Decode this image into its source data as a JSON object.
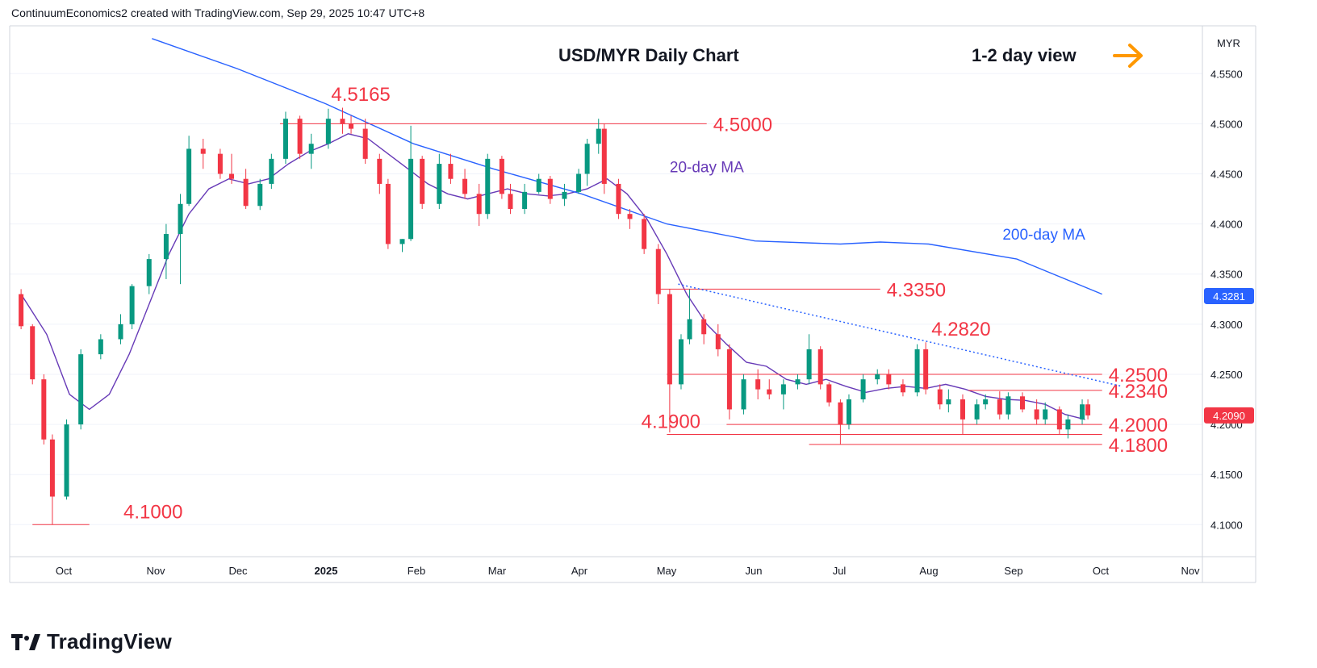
{
  "header": {
    "attribution": "ContinuumEconomics2 created with TradingView.com, Sep 29, 2025 10:47 UTC+8"
  },
  "footer": {
    "brand": "TradingView"
  },
  "colors": {
    "up": "#089981",
    "down": "#f23645",
    "ma20": "#673ab7",
    "ma200": "#2962ff",
    "level": "#f23645",
    "arrow": "#ff9800",
    "label_bg": "#131722"
  },
  "chart_data": {
    "type": "candlestick",
    "title": "USD/MYR Daily Chart",
    "view": {
      "text": "1-2 day view",
      "arrow": "right-arrow-icon"
    },
    "currency": "MYR",
    "y_axis": {
      "ticks": [
        "4.5500",
        "4.5000",
        "4.4500",
        "4.4000",
        "4.3500",
        "4.3000",
        "4.2500",
        "4.2000",
        "4.1500",
        "4.1000"
      ],
      "range": [
        4.06,
        4.58
      ]
    },
    "x_axis": {
      "ticks": [
        "Oct",
        "Nov",
        "Dec",
        "2025",
        "Feb",
        "Mar",
        "Apr",
        "May",
        "Jun",
        "Jul",
        "Aug",
        "Sep",
        "Oct",
        "Nov"
      ]
    },
    "price_labels": {
      "ma200": "4.3281",
      "last": "4.2090"
    },
    "series": [
      {
        "name": "20-day MA",
        "points": [
          [
            "2024-09-16",
            4.33
          ],
          [
            "2024-09-25",
            4.29
          ],
          [
            "2024-10-03",
            4.23
          ],
          [
            "2024-10-10",
            4.215
          ],
          [
            "2024-10-17",
            4.23
          ],
          [
            "2024-10-24",
            4.27
          ],
          [
            "2024-10-31",
            4.32
          ],
          [
            "2024-11-07",
            4.37
          ],
          [
            "2024-11-14",
            4.41
          ],
          [
            "2024-11-21",
            4.435
          ],
          [
            "2024-11-28",
            4.445
          ],
          [
            "2024-12-05",
            4.44
          ],
          [
            "2024-12-12",
            4.445
          ],
          [
            "2024-12-19",
            4.46
          ],
          [
            "2024-12-26",
            4.472
          ],
          [
            "2025-01-02",
            4.48
          ],
          [
            "2025-01-09",
            4.49
          ],
          [
            "2025-01-16",
            4.485
          ],
          [
            "2025-01-23",
            4.47
          ],
          [
            "2025-01-30",
            4.455
          ],
          [
            "2025-02-06",
            4.44
          ],
          [
            "2025-02-13",
            4.43
          ],
          [
            "2025-02-20",
            4.425
          ],
          [
            "2025-02-27",
            4.43
          ],
          [
            "2025-03-06",
            4.435
          ],
          [
            "2025-03-13",
            4.43
          ],
          [
            "2025-03-20",
            4.428
          ],
          [
            "2025-03-27",
            4.43
          ],
          [
            "2025-04-03",
            4.435
          ],
          [
            "2025-04-10",
            4.445
          ],
          [
            "2025-04-17",
            4.43
          ],
          [
            "2025-04-24",
            4.405
          ],
          [
            "2025-05-01",
            4.37
          ],
          [
            "2025-05-08",
            4.33
          ],
          [
            "2025-05-15",
            4.3
          ],
          [
            "2025-05-22",
            4.28
          ],
          [
            "2025-05-29",
            4.262
          ],
          [
            "2025-06-05",
            4.258
          ],
          [
            "2025-06-12",
            4.245
          ],
          [
            "2025-06-19",
            4.24
          ],
          [
            "2025-06-26",
            4.245
          ],
          [
            "2025-07-03",
            4.238
          ],
          [
            "2025-07-10",
            4.232
          ],
          [
            "2025-07-17",
            4.236
          ],
          [
            "2025-07-24",
            4.238
          ],
          [
            "2025-07-31",
            4.236
          ],
          [
            "2025-08-07",
            4.24
          ],
          [
            "2025-08-14",
            4.235
          ],
          [
            "2025-08-21",
            4.228
          ],
          [
            "2025-08-28",
            4.225
          ],
          [
            "2025-09-04",
            4.224
          ],
          [
            "2025-09-11",
            4.22
          ],
          [
            "2025-09-18",
            4.21
          ],
          [
            "2025-09-25",
            4.205
          ]
        ]
      },
      {
        "name": "200-day MA",
        "points": [
          [
            "2024-11-01",
            4.585
          ],
          [
            "2024-12-01",
            4.555
          ],
          [
            "2025-01-01",
            4.52
          ],
          [
            "2025-02-01",
            4.48
          ],
          [
            "2025-03-01",
            4.455
          ],
          [
            "2025-04-01",
            4.43
          ],
          [
            "2025-05-01",
            4.4
          ],
          [
            "2025-06-01",
            4.383
          ],
          [
            "2025-07-01",
            4.38
          ],
          [
            "2025-07-15",
            4.382
          ],
          [
            "2025-08-01",
            4.38
          ],
          [
            "2025-09-01",
            4.365
          ],
          [
            "2025-10-01",
            4.33
          ]
        ]
      }
    ],
    "candles": {
      "columns": [
        "date",
        "open",
        "high",
        "low",
        "close"
      ],
      "rows": [
        [
          "2024-09-16",
          4.33,
          4.335,
          4.295,
          4.298
        ],
        [
          "2024-09-20",
          4.298,
          4.3,
          4.24,
          4.245
        ],
        [
          "2024-09-24",
          4.245,
          4.25,
          4.18,
          4.185
        ],
        [
          "2024-09-27",
          4.185,
          4.19,
          4.1,
          4.128
        ],
        [
          "2024-10-02",
          4.128,
          4.205,
          4.125,
          4.2
        ],
        [
          "2024-10-07",
          4.2,
          4.275,
          4.195,
          4.27
        ],
        [
          "2024-10-14",
          4.27,
          4.29,
          4.265,
          4.285
        ],
        [
          "2024-10-21",
          4.285,
          4.31,
          4.28,
          4.3
        ],
        [
          "2024-10-25",
          4.3,
          4.34,
          4.295,
          4.338
        ],
        [
          "2024-10-31",
          4.338,
          4.37,
          4.33,
          4.365
        ],
        [
          "2024-11-06",
          4.365,
          4.4,
          4.345,
          4.39
        ],
        [
          "2024-11-11",
          4.39,
          4.43,
          4.34,
          4.42
        ],
        [
          "2024-11-14",
          4.42,
          4.488,
          4.418,
          4.475
        ],
        [
          "2024-11-19",
          4.475,
          4.485,
          4.455,
          4.47
        ],
        [
          "2024-11-25",
          4.47,
          4.475,
          4.445,
          4.45
        ],
        [
          "2024-11-29",
          4.45,
          4.47,
          4.44,
          4.445
        ],
        [
          "2024-12-04",
          4.445,
          4.455,
          4.415,
          4.418
        ],
        [
          "2024-12-09",
          4.418,
          4.445,
          4.414,
          4.44
        ],
        [
          "2024-12-13",
          4.44,
          4.47,
          4.435,
          4.465
        ],
        [
          "2024-12-18",
          4.465,
          4.512,
          4.46,
          4.505
        ],
        [
          "2024-12-23",
          4.505,
          4.508,
          4.465,
          4.47
        ],
        [
          "2024-12-27",
          4.47,
          4.49,
          4.455,
          4.48
        ],
        [
          "2025-01-02",
          4.48,
          4.515,
          4.475,
          4.505
        ],
        [
          "2025-01-07",
          4.505,
          4.516,
          4.49,
          4.5
        ],
        [
          "2025-01-10",
          4.5,
          4.508,
          4.49,
          4.495
        ],
        [
          "2025-01-15",
          4.495,
          4.505,
          4.46,
          4.465
        ],
        [
          "2025-01-20",
          4.465,
          4.47,
          4.43,
          4.44
        ],
        [
          "2025-01-23",
          4.44,
          4.445,
          4.375,
          4.38
        ],
        [
          "2025-01-28",
          4.38,
          4.385,
          4.372,
          4.385
        ],
        [
          "2025-01-31",
          4.385,
          4.498,
          4.383,
          4.465
        ],
        [
          "2025-02-04",
          4.465,
          4.468,
          4.415,
          4.42
        ],
        [
          "2025-02-10",
          4.42,
          4.47,
          4.415,
          4.46
        ],
        [
          "2025-02-14",
          4.46,
          4.47,
          4.44,
          4.445
        ],
        [
          "2025-02-19",
          4.445,
          4.455,
          4.425,
          4.43
        ],
        [
          "2025-02-24",
          4.43,
          4.44,
          4.398,
          4.41
        ],
        [
          "2025-02-27",
          4.41,
          4.47,
          4.405,
          4.465
        ],
        [
          "2025-03-04",
          4.465,
          4.468,
          4.425,
          4.43
        ],
        [
          "2025-03-07",
          4.43,
          4.44,
          4.41,
          4.415
        ],
        [
          "2025-03-12",
          4.415,
          4.44,
          4.41,
          4.432
        ],
        [
          "2025-03-17",
          4.432,
          4.45,
          4.43,
          4.445
        ],
        [
          "2025-03-21",
          4.445,
          4.448,
          4.42,
          4.425
        ],
        [
          "2025-03-26",
          4.425,
          4.44,
          4.418,
          4.432
        ],
        [
          "2025-03-31",
          4.432,
          4.455,
          4.43,
          4.45
        ],
        [
          "2025-04-03",
          4.45,
          4.485,
          4.438,
          4.48
        ],
        [
          "2025-04-07",
          4.48,
          4.505,
          4.47,
          4.495
        ],
        [
          "2025-04-09",
          4.495,
          4.5,
          4.43,
          4.44
        ],
        [
          "2025-04-14",
          4.44,
          4.445,
          4.405,
          4.41
        ],
        [
          "2025-04-18",
          4.41,
          4.415,
          4.395,
          4.405
        ],
        [
          "2025-04-23",
          4.405,
          4.41,
          4.37,
          4.375
        ],
        [
          "2025-04-28",
          4.375,
          4.38,
          4.32,
          4.33
        ],
        [
          "2025-05-02",
          4.33,
          4.335,
          4.192,
          4.24
        ],
        [
          "2025-05-06",
          4.24,
          4.29,
          4.235,
          4.285
        ],
        [
          "2025-05-09",
          4.285,
          4.335,
          4.28,
          4.305
        ],
        [
          "2025-05-14",
          4.305,
          4.31,
          4.28,
          4.29
        ],
        [
          "2025-05-19",
          4.29,
          4.3,
          4.268,
          4.275
        ],
        [
          "2025-05-23",
          4.275,
          4.28,
          4.205,
          4.215
        ],
        [
          "2025-05-28",
          4.215,
          4.25,
          4.21,
          4.245
        ],
        [
          "2025-06-02",
          4.245,
          4.255,
          4.225,
          4.235
        ],
        [
          "2025-06-06",
          4.235,
          4.245,
          4.225,
          4.23
        ],
        [
          "2025-06-11",
          4.23,
          4.245,
          4.215,
          4.24
        ],
        [
          "2025-06-16",
          4.24,
          4.25,
          4.235,
          4.245
        ],
        [
          "2025-06-20",
          4.245,
          4.29,
          4.24,
          4.275
        ],
        [
          "2025-06-24",
          4.275,
          4.278,
          4.235,
          4.24
        ],
        [
          "2025-06-27",
          4.24,
          4.242,
          4.218,
          4.222
        ],
        [
          "2025-07-01",
          4.222,
          4.225,
          4.18,
          4.2
        ],
        [
          "2025-07-04",
          4.2,
          4.23,
          4.195,
          4.225
        ],
        [
          "2025-07-09",
          4.225,
          4.25,
          4.222,
          4.245
        ],
        [
          "2025-07-14",
          4.245,
          4.255,
          4.24,
          4.25
        ],
        [
          "2025-07-18",
          4.25,
          4.255,
          4.235,
          4.24
        ],
        [
          "2025-07-23",
          4.24,
          4.245,
          4.228,
          4.232
        ],
        [
          "2025-07-28",
          4.232,
          4.28,
          4.228,
          4.275
        ],
        [
          "2025-07-31",
          4.275,
          4.282,
          4.23,
          4.235
        ],
        [
          "2025-08-05",
          4.235,
          4.24,
          4.215,
          4.22
        ],
        [
          "2025-08-08",
          4.22,
          4.235,
          4.212,
          4.225
        ],
        [
          "2025-08-13",
          4.225,
          4.23,
          4.19,
          4.205
        ],
        [
          "2025-08-18",
          4.205,
          4.225,
          4.2,
          4.22
        ],
        [
          "2025-08-21",
          4.22,
          4.23,
          4.215,
          4.225
        ],
        [
          "2025-08-26",
          4.225,
          4.233,
          4.205,
          4.21
        ],
        [
          "2025-08-29",
          4.21,
          4.232,
          4.205,
          4.228
        ],
        [
          "2025-09-03",
          4.228,
          4.232,
          4.212,
          4.215
        ],
        [
          "2025-09-08",
          4.215,
          4.225,
          4.2,
          4.205
        ],
        [
          "2025-09-11",
          4.205,
          4.222,
          4.2,
          4.215
        ],
        [
          "2025-09-16",
          4.215,
          4.218,
          4.19,
          4.195
        ],
        [
          "2025-09-19",
          4.195,
          4.21,
          4.186,
          4.205
        ],
        [
          "2025-09-24",
          4.205,
          4.225,
          4.2,
          4.22
        ],
        [
          "2025-09-26",
          4.22,
          4.225,
          4.205,
          4.209
        ]
      ]
    },
    "levels": [
      {
        "value": 4.5,
        "label": "4.5000",
        "from": "2024-12-16",
        "to": "2025-05-15"
      },
      {
        "value": 4.335,
        "label": "4.3350",
        "from": "2025-04-28",
        "to": "2025-07-15"
      },
      {
        "value": 4.25,
        "label": "4.2500",
        "from": "2025-05-01",
        "to": "2025-10-01"
      },
      {
        "value": 4.234,
        "label": "4.2340",
        "from": "2025-08-15",
        "to": "2025-10-01"
      },
      {
        "value": 4.2,
        "label": "4.2000",
        "from": "2025-05-22",
        "to": "2025-10-01"
      },
      {
        "value": 4.19,
        "label": "",
        "from": "2025-05-01",
        "to": "2025-10-01"
      },
      {
        "value": 4.18,
        "label": "4.1800",
        "from": "2025-06-20",
        "to": "2025-10-01"
      },
      {
        "value": 4.1,
        "label": "",
        "from": "2024-09-20",
        "to": "2024-10-10"
      }
    ],
    "annotations": [
      {
        "text": "4.5165",
        "date": "2025-01-03",
        "value": 4.5165
      },
      {
        "text": "4.2820",
        "date": "2025-08-02",
        "value": 4.282
      },
      {
        "text": "4.1900",
        "date": "2025-04-22",
        "value": 4.19
      },
      {
        "text": "4.1000",
        "date": "2024-10-22",
        "value": 4.1
      },
      {
        "text": "20-day MA",
        "date": "2025-05-02",
        "value": 4.445
      },
      {
        "text": "200-day MA",
        "date": "2025-08-27",
        "value": 4.378
      }
    ],
    "trendline": {
      "from": [
        "2025-05-05",
        4.34
      ],
      "to": [
        "2025-10-08",
        4.238
      ]
    }
  }
}
